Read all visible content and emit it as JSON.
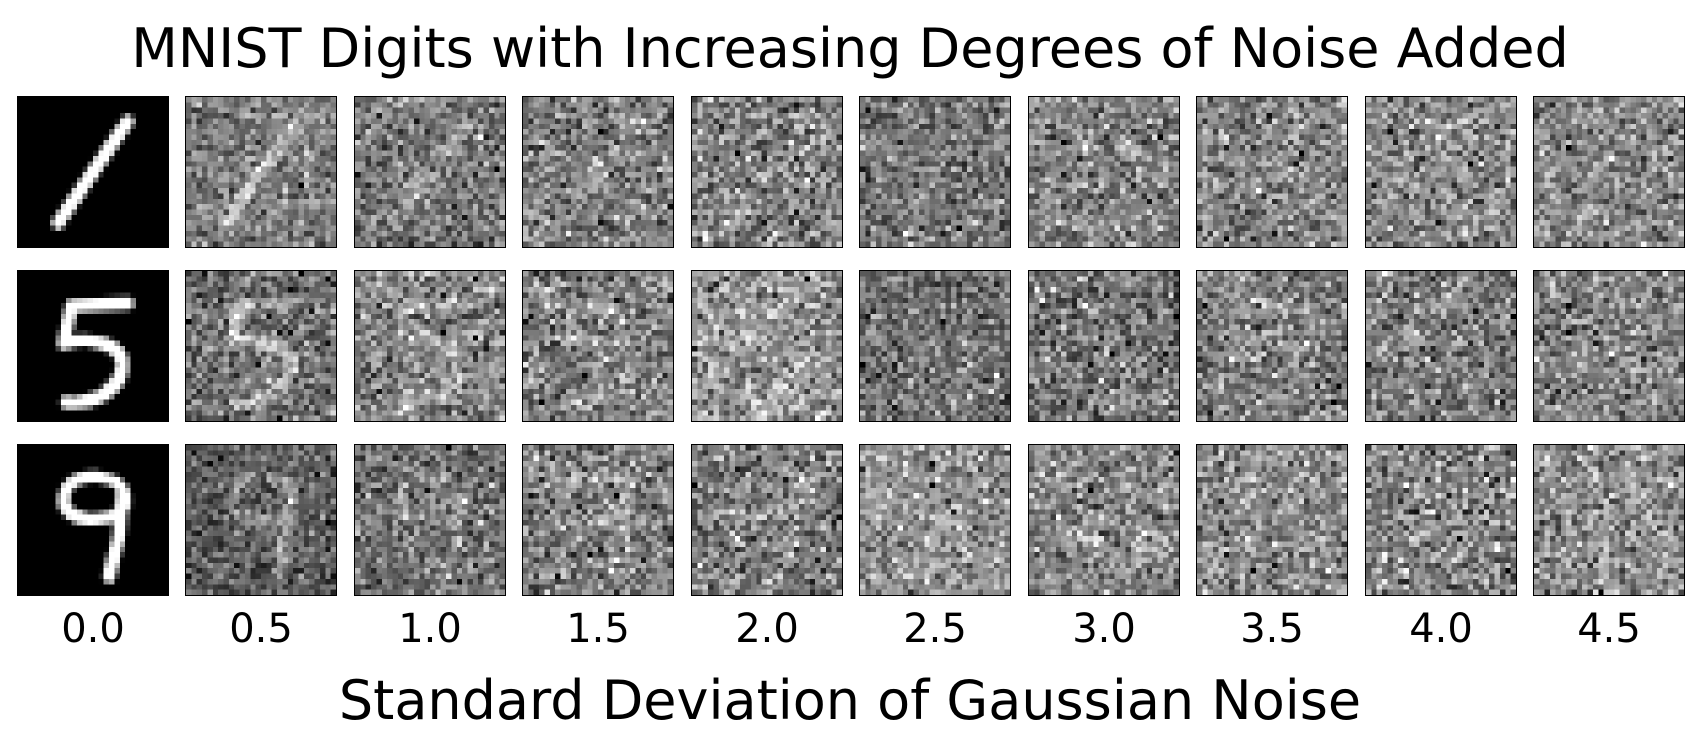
{
  "chart_data": {
    "type": "image-grid",
    "title": "MNIST Digits with Increasing Degrees of Noise Added",
    "xlabel": "Standard Deviation of Gaussian Noise",
    "noise_std": [
      "0.0",
      "0.5",
      "1.0",
      "1.5",
      "2.0",
      "2.5",
      "3.0",
      "3.5",
      "4.0",
      "4.5"
    ],
    "digits": [
      1,
      5,
      9
    ],
    "image_resolution": 28,
    "colormap": "gray"
  }
}
